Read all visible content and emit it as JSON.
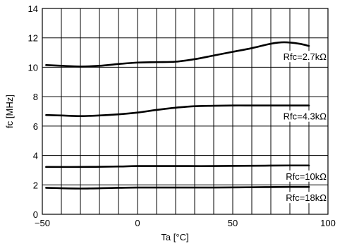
{
  "chart_data": {
    "type": "line",
    "title": "",
    "xlabel": "Ta [°C]",
    "ylabel": "fc [MHz]",
    "xlim": [
      -50,
      100
    ],
    "ylim": [
      0,
      14
    ],
    "x_ticks": [
      "−50",
      "0",
      "50",
      "100"
    ],
    "y_ticks": [
      "0",
      "2",
      "4",
      "6",
      "8",
      "10",
      "12",
      "14"
    ],
    "grid": true,
    "series": [
      {
        "name": "Rfc=2.7kΩ",
        "x": [
          -48,
          -40,
          -30,
          -20,
          -10,
          0,
          10,
          20,
          30,
          40,
          50,
          60,
          70,
          77,
          85,
          90
        ],
        "y": [
          10.15,
          10.1,
          10.05,
          10.1,
          10.22,
          10.32,
          10.35,
          10.38,
          10.55,
          10.8,
          11.05,
          11.3,
          11.6,
          11.7,
          11.6,
          11.45
        ]
      },
      {
        "name": "Rfc=4.3kΩ",
        "x": [
          -48,
          -40,
          -30,
          -20,
          -10,
          0,
          10,
          20,
          30,
          40,
          50,
          60,
          70,
          80,
          90
        ],
        "y": [
          6.75,
          6.72,
          6.68,
          6.72,
          6.8,
          6.92,
          7.1,
          7.25,
          7.35,
          7.38,
          7.4,
          7.4,
          7.4,
          7.4,
          7.4
        ]
      },
      {
        "name": "Rfc=10kΩ",
        "x": [
          -48,
          -30,
          -10,
          0,
          20,
          40,
          60,
          80,
          90
        ],
        "y": [
          3.22,
          3.22,
          3.25,
          3.28,
          3.28,
          3.28,
          3.3,
          3.32,
          3.32
        ]
      },
      {
        "name": "Rfc=18kΩ",
        "x": [
          -48,
          -30,
          -10,
          0,
          20,
          40,
          60,
          80,
          90
        ],
        "y": [
          1.8,
          1.75,
          1.8,
          1.82,
          1.82,
          1.82,
          1.84,
          1.86,
          1.86
        ]
      }
    ]
  }
}
